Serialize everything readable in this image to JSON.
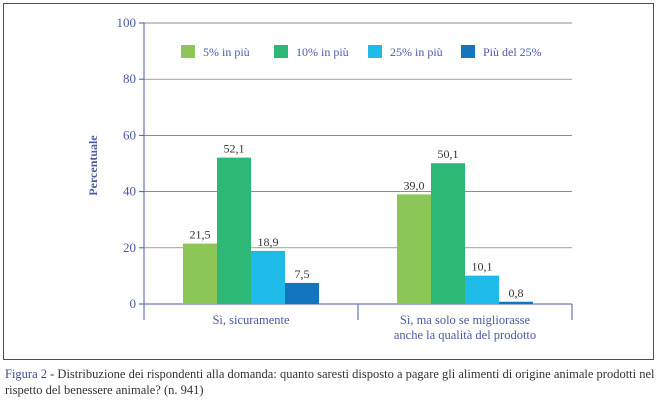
{
  "chart_data": {
    "type": "bar",
    "ylabel": "Percentuale",
    "xlabel": "",
    "ylim": [
      0,
      100
    ],
    "yticks": [
      0,
      20,
      40,
      60,
      80,
      100
    ],
    "categories": [
      [
        "Sì, sicuramente"
      ],
      [
        "Sì, ma solo se migliorasse",
        "anche la qualità del prodotto"
      ]
    ],
    "series": [
      {
        "name": "5% in più",
        "color": "#8cc657",
        "values": [
          21.5,
          39.0
        ],
        "labels": [
          "21,5",
          "39,0"
        ]
      },
      {
        "name": "10% in più",
        "color": "#2db877",
        "values": [
          52.1,
          50.1
        ],
        "labels": [
          "52,1",
          "50,1"
        ]
      },
      {
        "name": "25% in più",
        "color": "#1fbbe8",
        "values": [
          18.9,
          10.1
        ],
        "labels": [
          "18,9",
          "10,1"
        ]
      },
      {
        "name": "Più del 25%",
        "color": "#1275bd",
        "values": [
          7.5,
          0.8
        ],
        "labels": [
          "7,5",
          "0,8"
        ]
      }
    ],
    "legend_position": "top-right"
  },
  "caption": {
    "label": "Figura 2",
    "text": " - Distribuzione dei rispondenti alla domanda: quanto saresti disposto a pagare gli alimenti di origine animale prodotti nel rispetto del benessere animale? (n. 941)"
  },
  "colors": {
    "axis": "#4a5aa2",
    "frame": "#3b4a94",
    "grid": "#666666"
  }
}
